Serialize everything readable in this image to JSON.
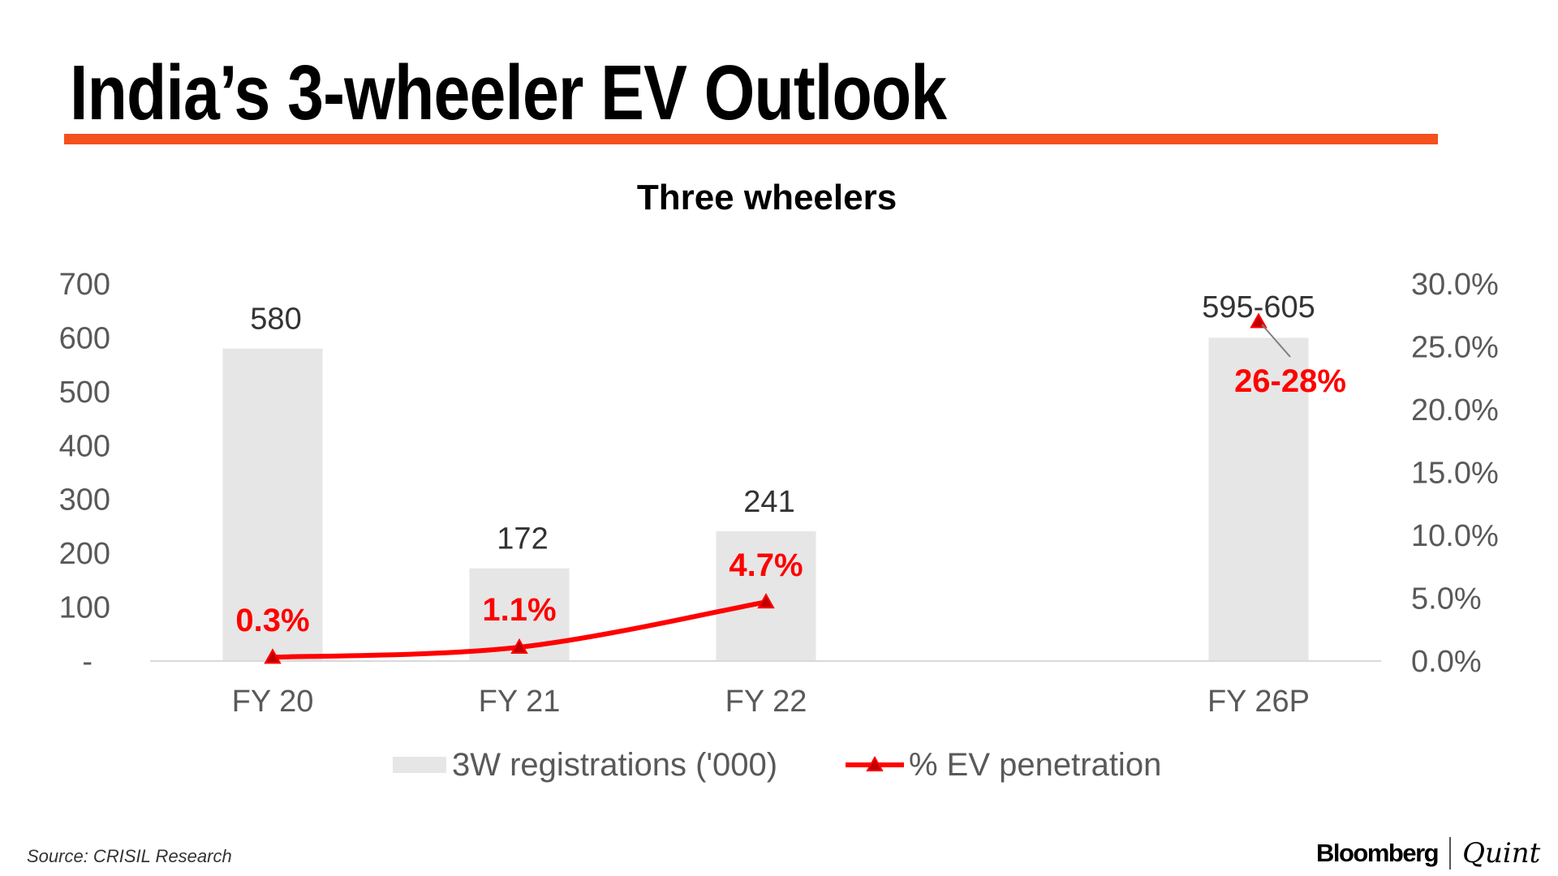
{
  "header": {
    "title": "India’s 3-wheeler EV Outlook"
  },
  "footer": {
    "source": "Source: CRISIL Research",
    "logo_left": "Bloomberg",
    "logo_right": "Quint"
  },
  "colors": {
    "accent": "#f4511e",
    "bar": "#e6e6e6",
    "line": "#ff0000",
    "marker": "#c00000"
  },
  "chart_data": {
    "type": "bar+line",
    "title": "Three wheelers",
    "categories": [
      "FY 20",
      "FY 21",
      "FY 22",
      "FY 26P"
    ],
    "series": [
      {
        "name": "3W registrations ('000)",
        "type": "bar",
        "axis": "left",
        "values": [
          580,
          172,
          241,
          600
        ],
        "labels": [
          "580",
          "172",
          "241",
          "595-605"
        ]
      },
      {
        "name": "% EV penetration",
        "type": "line",
        "axis": "right",
        "values": [
          0.3,
          1.1,
          4.7,
          27
        ],
        "labels": [
          "0.3%",
          "1.1%",
          "4.7%",
          "26-28%"
        ],
        "connected_points": 3
      }
    ],
    "left_axis": {
      "ylim": [
        0,
        700
      ],
      "ticks": [
        "-",
        "100",
        "200",
        "300",
        "400",
        "500",
        "600",
        "700"
      ]
    },
    "right_axis": {
      "ylim": [
        0,
        30
      ],
      "ticks": [
        "0.0%",
        "5.0%",
        "10.0%",
        "15.0%",
        "20.0%",
        "25.0%",
        "30.0%"
      ]
    },
    "legend": "bottom"
  }
}
